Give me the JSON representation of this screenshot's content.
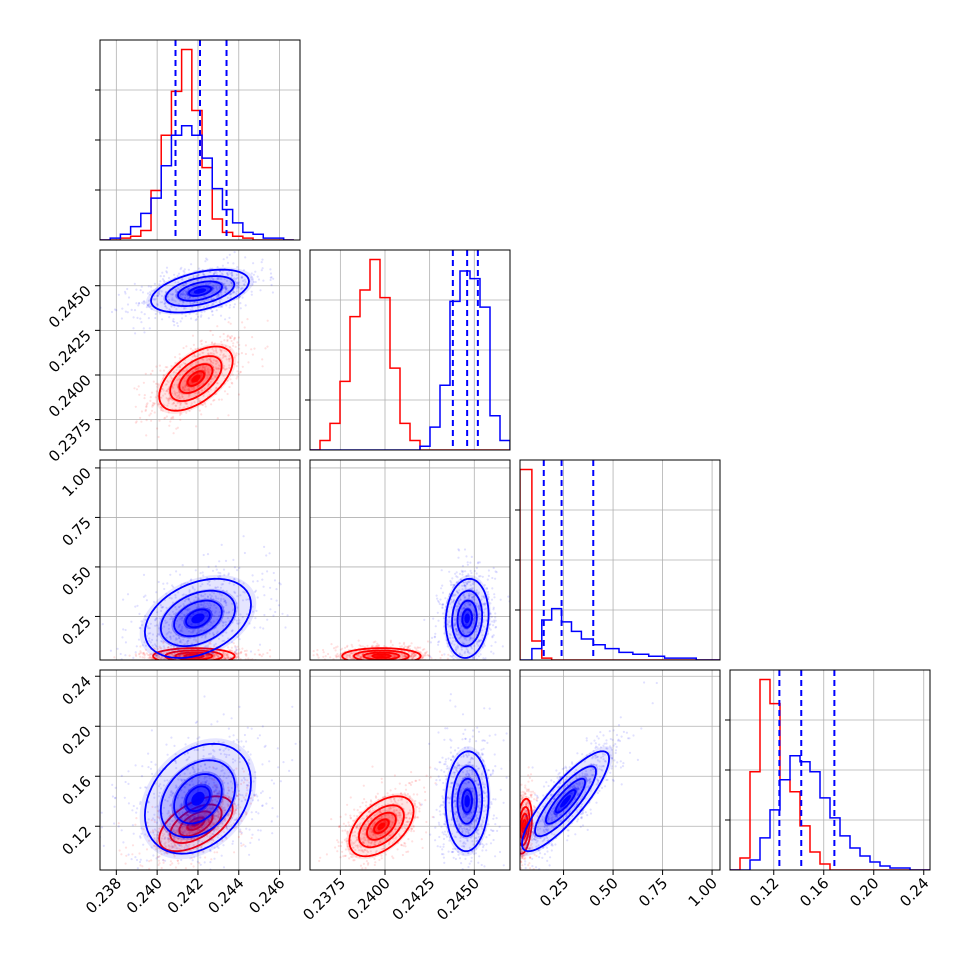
{
  "chart_data": {
    "type": "corner",
    "parameters": 4,
    "grid": true,
    "colors": {
      "series_a": "#0000ff",
      "series_b": "#ff0000"
    },
    "axes": [
      {
        "range": [
          0.2372,
          0.247
        ],
        "ticks": [
          "0.238",
          "0.240",
          "0.242",
          "0.244",
          "0.246"
        ],
        "tick_values": [
          0.238,
          0.24,
          0.242,
          0.244,
          0.246
        ]
      },
      {
        "range": [
          0.2358,
          0.247
        ],
        "ticks": [
          "0.2375",
          "0.2400",
          "0.2425",
          "0.2450"
        ],
        "tick_values": [
          0.2375,
          0.24,
          0.2425,
          0.245
        ]
      },
      {
        "range": [
          0.03,
          1.04
        ],
        "ticks": [
          "0.25",
          "0.50",
          "0.75",
          "1.00"
        ],
        "tick_values": [
          0.25,
          0.5,
          0.75,
          1.0
        ]
      },
      {
        "range": [
          0.085,
          0.245
        ],
        "ticks": [
          "0.12",
          "0.16",
          "0.20",
          "0.24"
        ],
        "tick_values": [
          0.12,
          0.16,
          0.2,
          0.24
        ]
      }
    ],
    "marginals": [
      {
        "param": 0,
        "bins": [
          0.2372,
          0.2377,
          0.2382,
          0.2387,
          0.2392,
          0.2397,
          0.2402,
          0.2407,
          0.2412,
          0.2417,
          0.2422,
          0.2427,
          0.2432,
          0.2437,
          0.2442,
          0.2447,
          0.2452,
          0.2457,
          0.2462,
          0.2467
        ],
        "series_a": [
          0.0,
          0.01,
          0.03,
          0.07,
          0.14,
          0.22,
          0.39,
          0.55,
          0.6,
          0.55,
          0.43,
          0.27,
          0.16,
          0.09,
          0.04,
          0.03,
          0.01,
          0.01,
          0.0
        ],
        "series_b": [
          0.0,
          0.0,
          0.01,
          0.02,
          0.05,
          0.26,
          0.55,
          0.78,
          1.0,
          0.68,
          0.38,
          0.11,
          0.04,
          0.02,
          0.01,
          0.0,
          0.0,
          0.0,
          0.0
        ],
        "quantiles_a": [
          0.2409,
          0.2421,
          0.2434
        ]
      },
      {
        "param": 1,
        "bins": [
          0.2358,
          0.23636,
          0.23692,
          0.23748,
          0.23804,
          0.2386,
          0.23916,
          0.23972,
          0.24028,
          0.24084,
          0.2414,
          0.24196,
          0.24252,
          0.24308,
          0.24364,
          0.2442,
          0.24476,
          0.24532,
          0.24588,
          0.24644,
          0.247
        ],
        "series_a": [
          0.0,
          0.0,
          0.0,
          0.0,
          0.0,
          0.0,
          0.0,
          0.0,
          0.0,
          0.0,
          0.0,
          0.02,
          0.12,
          0.34,
          0.78,
          0.94,
          0.9,
          0.75,
          0.18,
          0.05
        ],
        "series_b": [
          0.0,
          0.05,
          0.14,
          0.36,
          0.7,
          0.84,
          1.0,
          0.8,
          0.43,
          0.14,
          0.05,
          0.0,
          0.0,
          0.0,
          0.0,
          0.0,
          0.0,
          0.0,
          0.0,
          0.0
        ],
        "quantiles_a": [
          0.2438,
          0.2446,
          0.2452
        ]
      },
      {
        "param": 2,
        "bins": [
          0.03,
          0.09,
          0.14,
          0.19,
          0.24,
          0.29,
          0.34,
          0.4,
          0.46,
          0.53,
          0.6,
          0.68,
          0.76,
          0.84,
          0.92,
          1.04
        ],
        "series_a": [
          0.0,
          0.06,
          0.21,
          0.27,
          0.2,
          0.15,
          0.11,
          0.08,
          0.06,
          0.04,
          0.03,
          0.02,
          0.01,
          0.01,
          0.0
        ],
        "series_b": [
          1.0,
          0.1,
          0.01,
          0.0,
          0.0,
          0.0,
          0.0,
          0.0,
          0.0,
          0.0,
          0.0,
          0.0,
          0.0,
          0.0,
          0.0
        ],
        "quantiles_a": [
          0.15,
          0.24,
          0.4
        ]
      },
      {
        "param": 3,
        "bins": [
          0.085,
          0.093,
          0.101,
          0.109,
          0.117,
          0.125,
          0.133,
          0.141,
          0.149,
          0.157,
          0.165,
          0.173,
          0.181,
          0.189,
          0.197,
          0.205,
          0.213,
          0.221,
          0.229,
          0.237,
          0.245
        ],
        "series_a": [
          0.0,
          0.0,
          0.05,
          0.16,
          0.3,
          0.45,
          0.57,
          0.54,
          0.49,
          0.36,
          0.26,
          0.17,
          0.11,
          0.07,
          0.04,
          0.02,
          0.01,
          0.01,
          0.0,
          0.0
        ],
        "series_b": [
          0.0,
          0.06,
          0.49,
          0.95,
          0.83,
          0.45,
          0.39,
          0.22,
          0.09,
          0.03,
          0.0,
          0.0,
          0.0,
          0.0,
          0.0,
          0.0,
          0.0,
          0.0,
          0.0,
          0.0
        ],
        "quantiles_a": [
          0.1245,
          0.142,
          0.1685
        ]
      }
    ],
    "joints": [
      {
        "x_param": 0,
        "y_param": 1,
        "series_a": {
          "center": [
            0.2421,
            0.2447
          ],
          "sigma": [
            0.0012,
            0.0006
          ],
          "corr": 0.45
        },
        "series_b": {
          "center": [
            0.2419,
            0.2398
          ],
          "sigma": [
            0.0009,
            0.0009
          ],
          "corr": 0.55
        }
      },
      {
        "x_param": 0,
        "y_param": 2,
        "series_a": {
          "center": [
            0.242,
            0.24
          ],
          "sigma": [
            0.0013,
            0.1
          ],
          "corr": 0.35
        },
        "series_b": {
          "center": [
            0.2418,
            0.05
          ],
          "sigma": [
            0.001,
            0.02
          ],
          "corr": 0.0
        }
      },
      {
        "x_param": 1,
        "y_param": 2,
        "series_a": {
          "center": [
            0.2446,
            0.24
          ],
          "sigma": [
            0.0006,
            0.1
          ],
          "corr": 0.1
        },
        "series_b": {
          "center": [
            0.2398,
            0.05
          ],
          "sigma": [
            0.0011,
            0.02
          ],
          "corr": 0.0
        }
      },
      {
        "x_param": 0,
        "y_param": 3,
        "series_a": {
          "center": [
            0.242,
            0.142
          ],
          "sigma": [
            0.0013,
            0.022
          ],
          "corr": 0.3
        },
        "series_b": {
          "center": [
            0.2419,
            0.122
          ],
          "sigma": [
            0.0009,
            0.011
          ],
          "corr": 0.55
        }
      },
      {
        "x_param": 1,
        "y_param": 3,
        "series_a": {
          "center": [
            0.2446,
            0.14
          ],
          "sigma": [
            0.0006,
            0.02
          ],
          "corr": 0.05
        },
        "series_b": {
          "center": [
            0.2398,
            0.12
          ],
          "sigma": [
            0.0009,
            0.012
          ],
          "corr": 0.5
        }
      },
      {
        "x_param": 2,
        "y_param": 3,
        "series_a": {
          "center": [
            0.26,
            0.14
          ],
          "sigma": [
            0.11,
            0.02
          ],
          "corr": 0.85
        },
        "series_b": {
          "center": [
            0.05,
            0.12
          ],
          "sigma": [
            0.02,
            0.011
          ],
          "corr": 0.3
        }
      }
    ]
  }
}
